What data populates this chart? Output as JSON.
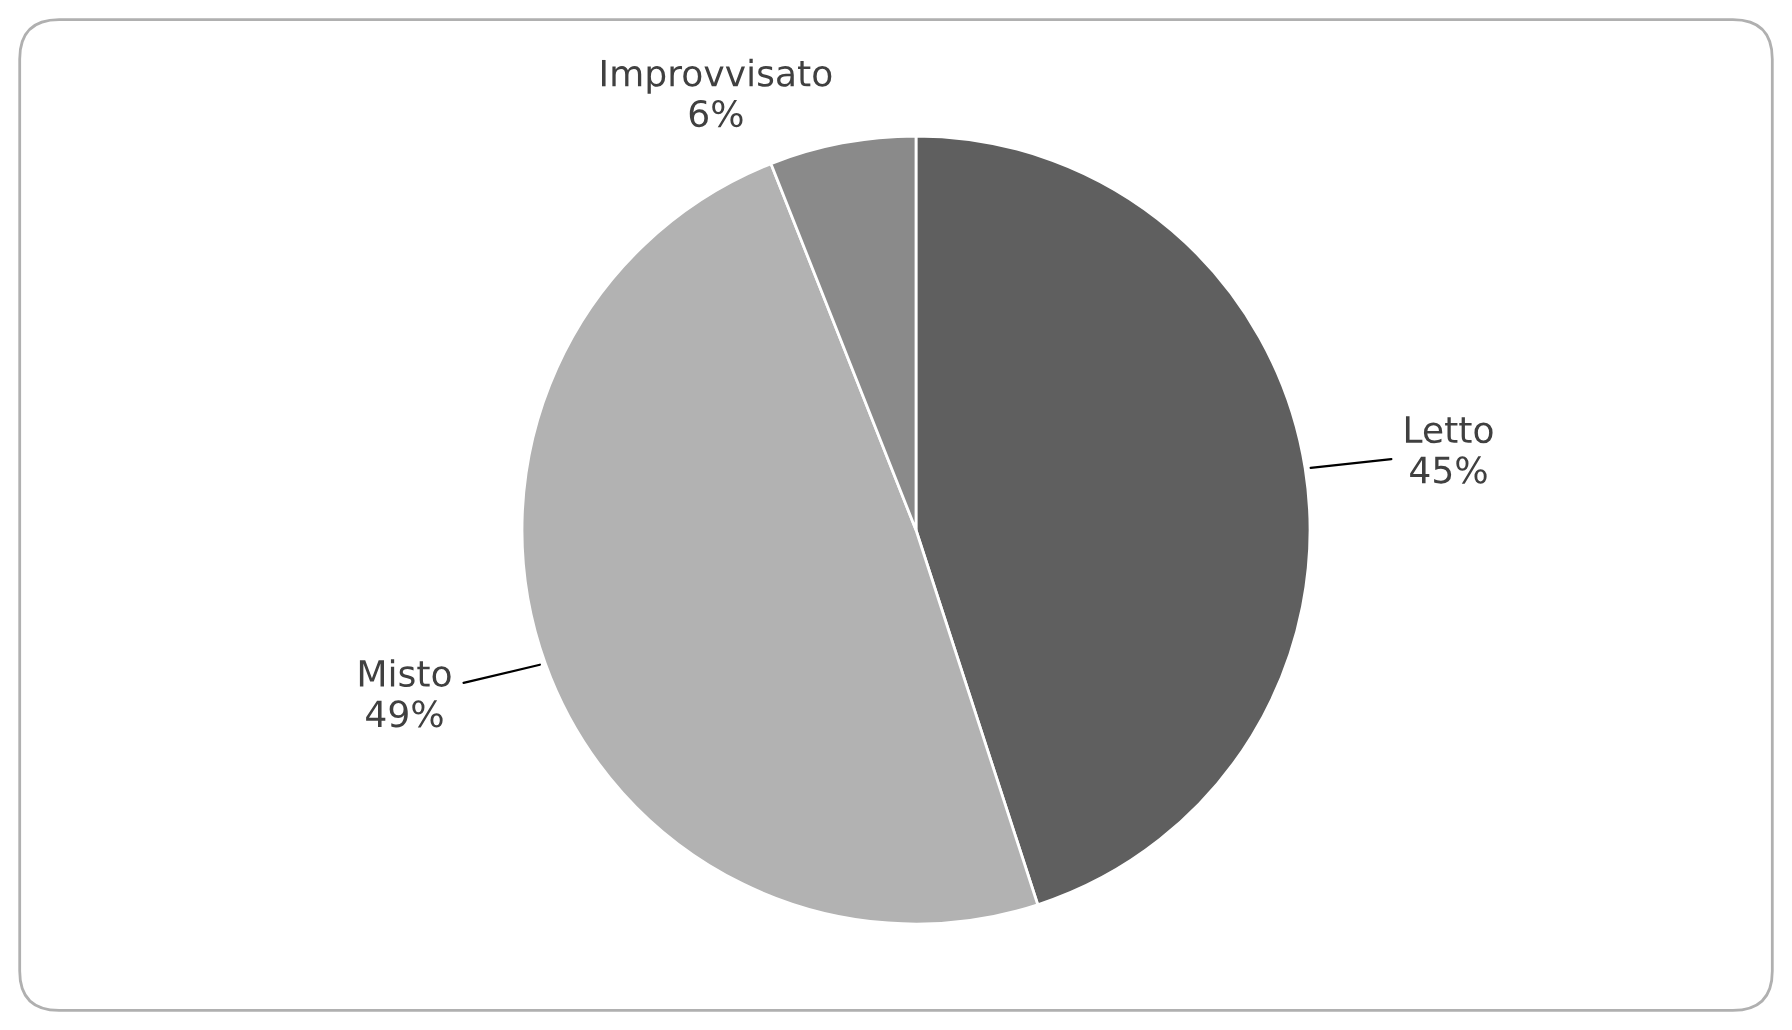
{
  "chart_data": {
    "type": "pie",
    "categories": [
      "Letto",
      "Misto",
      "Improvvisato"
    ],
    "values": [
      45,
      49,
      6
    ],
    "value_labels": [
      "45%",
      "49%",
      "6%"
    ],
    "colors": [
      "#5f5f5f",
      "#b2b2b2",
      "#8a8a8a"
    ]
  }
}
